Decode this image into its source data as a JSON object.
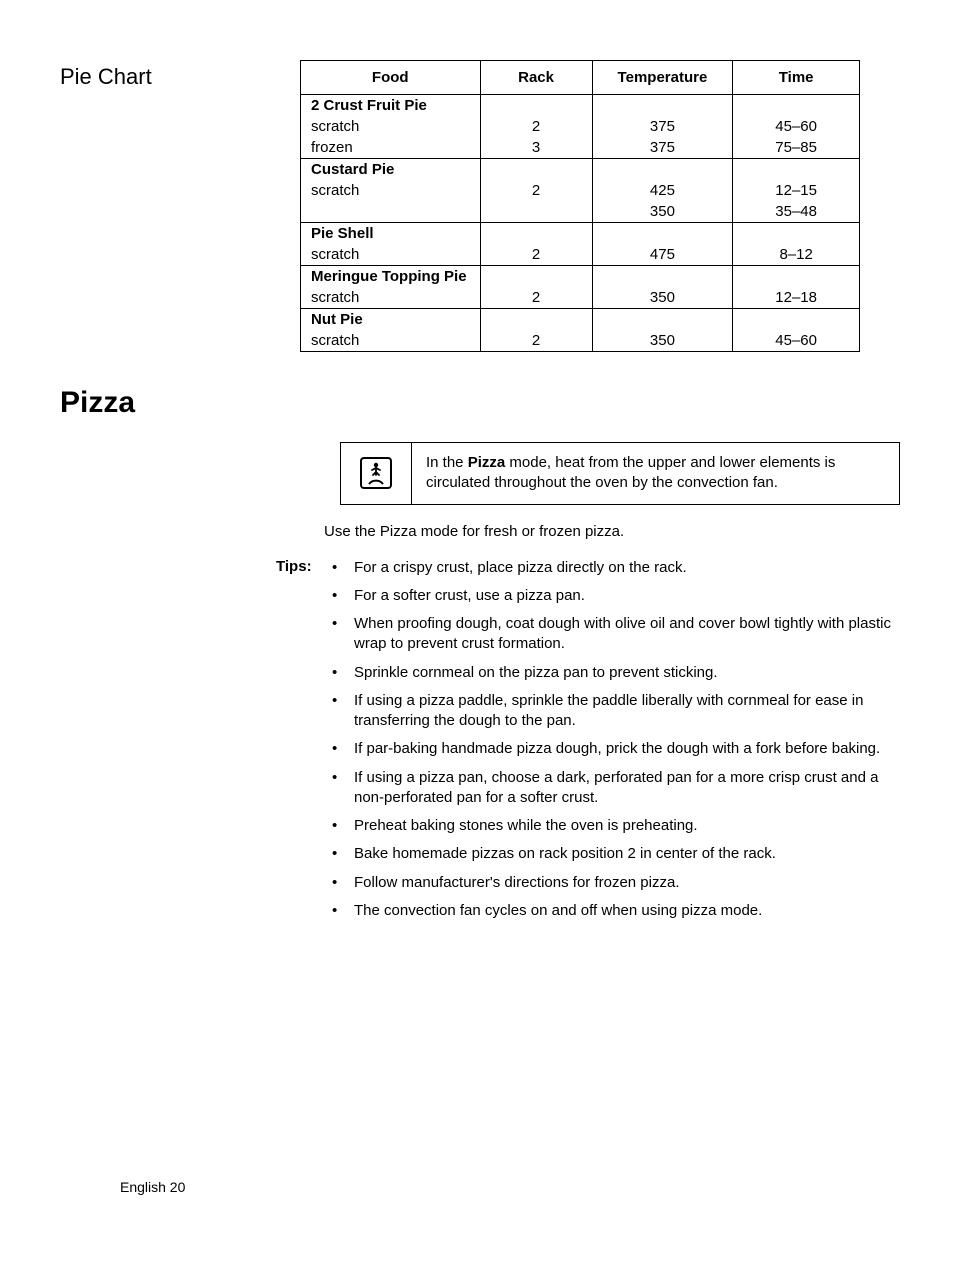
{
  "sideHeading": "Pie Chart",
  "table": {
    "headers": [
      "Food",
      "Rack",
      "Temperature",
      "Time"
    ],
    "groups": [
      {
        "title": "2 Crust Fruit Pie",
        "rows": [
          {
            "food": "scratch",
            "rack": "2",
            "temp": "375",
            "time": "45–60"
          },
          {
            "food": "frozen",
            "rack": "3",
            "temp": "375",
            "time": "75–85"
          }
        ]
      },
      {
        "title": "Custard Pie",
        "rows": [
          {
            "food": "scratch",
            "rack": "2",
            "temp": "425",
            "time": "12–15"
          },
          {
            "food": "",
            "rack": "",
            "temp": "350",
            "time": "35–48"
          }
        ]
      },
      {
        "title": "Pie Shell",
        "rows": [
          {
            "food": "scratch",
            "rack": "2",
            "temp": "475",
            "time": "8–12"
          }
        ]
      },
      {
        "title": "Meringue Topping Pie",
        "rows": [
          {
            "food": "scratch",
            "rack": "2",
            "temp": "350",
            "time": "12–18"
          }
        ]
      },
      {
        "title": "Nut Pie",
        "rows": [
          {
            "food": "scratch",
            "rack": "2",
            "temp": "350",
            "time": "45–60"
          }
        ]
      }
    ]
  },
  "sectionTitle": "Pizza",
  "callout": {
    "prefix": "In the ",
    "bold": "Pizza",
    "suffix": " mode, heat from the upper and lower elements is circulated throughout the oven by the convection fan."
  },
  "intro": "Use the Pizza mode for fresh or frozen pizza.",
  "tipsLabel": "Tips:",
  "tips": [
    "For a crispy crust, place pizza directly on the rack.",
    "For a softer crust, use a pizza pan.",
    "When proofing dough, coat dough with olive oil and cover bowl tightly with plastic wrap to prevent crust formation.",
    "Sprinkle cornmeal on the pizza pan to prevent sticking.",
    "If using a pizza paddle, sprinkle the paddle liberally with cornmeal for ease in transferring the dough to the pan.",
    "If par-baking handmade pizza dough, prick the dough with a fork before baking.",
    "If using a pizza pan, choose a dark, perforated pan for a more crisp crust and a non-perforated pan for a softer crust.",
    "Preheat baking stones while the oven is preheating.",
    "Bake homemade pizzas on rack position 2 in center of the rack.",
    "Follow manufacturer's directions for frozen pizza.",
    "The convection fan cycles on and off when using pizza mode."
  ],
  "footer": "English 20"
}
